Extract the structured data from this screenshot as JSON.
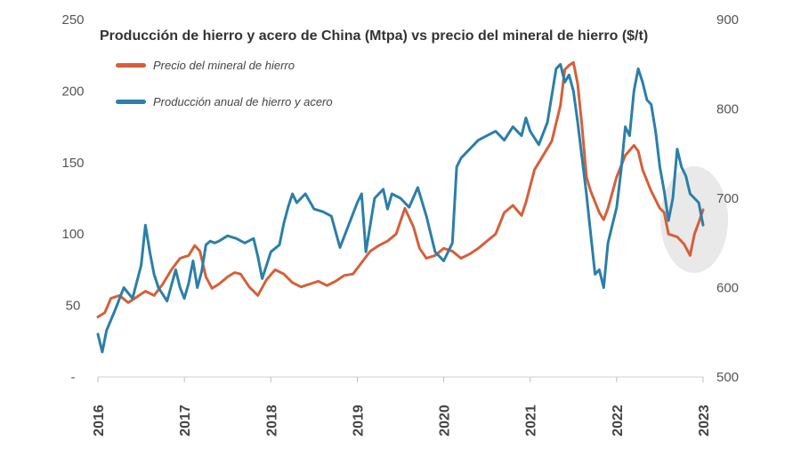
{
  "chart_data": {
    "type": "line",
    "title": "Producción de hierro y acero de China (Mtpa) vs precio del mineral de hierro ($/t)",
    "x_tick_labels": [
      "2016",
      "2017",
      "2018",
      "2019",
      "2020",
      "2021",
      "2022",
      "2023"
    ],
    "x_range": [
      2016,
      2023
    ],
    "y_left": {
      "range": [
        0,
        250
      ],
      "tick_labels": [
        "-",
        "50",
        "100",
        "150",
        "200",
        "250"
      ]
    },
    "y_right": {
      "range": [
        500,
        900
      ],
      "tick_labels": [
        "500",
        "600",
        "700",
        "800",
        "900"
      ]
    },
    "grid": false,
    "legend_position": "top-left",
    "highlight_region": "2022.5-2023 end of series (grey circle)",
    "colors": {
      "price": "#d4603a",
      "production": "#2b7fa8",
      "highlight": "#e8e8e8",
      "text": "#555555"
    },
    "series": [
      {
        "name": "Precio del mineral de hierro",
        "axis": "left",
        "color": "#d4603a",
        "x": [
          2016.0,
          2016.08,
          2016.15,
          2016.25,
          2016.35,
          2016.45,
          2016.55,
          2016.65,
          2016.75,
          2016.85,
          2016.95,
          2017.05,
          2017.12,
          2017.18,
          2017.25,
          2017.32,
          2017.4,
          2017.5,
          2017.58,
          2017.65,
          2017.75,
          2017.85,
          2017.95,
          2018.05,
          2018.15,
          2018.25,
          2018.35,
          2018.45,
          2018.55,
          2018.65,
          2018.75,
          2018.85,
          2018.95,
          2019.05,
          2019.15,
          2019.25,
          2019.35,
          2019.45,
          2019.55,
          2019.65,
          2019.72,
          2019.8,
          2019.9,
          2020.0,
          2020.1,
          2020.2,
          2020.3,
          2020.4,
          2020.5,
          2020.6,
          2020.7,
          2020.8,
          2020.9,
          2020.95,
          2021.05,
          2021.15,
          2021.25,
          2021.35,
          2021.4,
          2021.45,
          2021.5,
          2021.55,
          2021.6,
          2021.65,
          2021.7,
          2021.8,
          2021.85,
          2021.9,
          2022.0,
          2022.1,
          2022.2,
          2022.25,
          2022.3,
          2022.4,
          2022.5,
          2022.55,
          2022.6,
          2022.7,
          2022.78,
          2022.85,
          2022.9,
          2022.95,
          2023.0
        ],
        "values": [
          42,
          45,
          55,
          57,
          52,
          56,
          60,
          57,
          65,
          75,
          83,
          85,
          92,
          88,
          70,
          62,
          65,
          70,
          73,
          72,
          63,
          57,
          68,
          75,
          72,
          66,
          63,
          65,
          67,
          64,
          67,
          71,
          72,
          80,
          88,
          92,
          95,
          100,
          118,
          105,
          90,
          83,
          85,
          90,
          88,
          83,
          86,
          90,
          95,
          100,
          115,
          120,
          113,
          122,
          145,
          155,
          165,
          190,
          215,
          218,
          220,
          205,
          175,
          140,
          130,
          115,
          110,
          118,
          140,
          155,
          162,
          158,
          145,
          130,
          118,
          115,
          100,
          98,
          93,
          85,
          100,
          108,
          117
        ]
      },
      {
        "name": "Producción anual de hierro y acero",
        "axis": "right",
        "color": "#2b7fa8",
        "x": [
          2016.0,
          2016.05,
          2016.1,
          2016.2,
          2016.3,
          2016.4,
          2016.5,
          2016.55,
          2016.6,
          2016.65,
          2016.7,
          2016.8,
          2016.9,
          2016.95,
          2017.0,
          2017.05,
          2017.1,
          2017.15,
          2017.2,
          2017.25,
          2017.3,
          2017.35,
          2017.4,
          2017.5,
          2017.6,
          2017.7,
          2017.8,
          2017.85,
          2017.9,
          2018.0,
          2018.1,
          2018.15,
          2018.2,
          2018.25,
          2018.3,
          2018.4,
          2018.5,
          2018.6,
          2018.7,
          2018.8,
          2018.9,
          2019.0,
          2019.05,
          2019.1,
          2019.2,
          2019.3,
          2019.35,
          2019.4,
          2019.5,
          2019.6,
          2019.7,
          2019.8,
          2019.9,
          2020.0,
          2020.1,
          2020.15,
          2020.2,
          2020.3,
          2020.4,
          2020.5,
          2020.6,
          2020.7,
          2020.8,
          2020.9,
          2020.95,
          2021.0,
          2021.1,
          2021.2,
          2021.3,
          2021.35,
          2021.4,
          2021.45,
          2021.5,
          2021.55,
          2021.6,
          2021.65,
          2021.7,
          2021.75,
          2021.8,
          2021.85,
          2021.9,
          2022.0,
          2022.05,
          2022.1,
          2022.15,
          2022.2,
          2022.25,
          2022.3,
          2022.35,
          2022.4,
          2022.45,
          2022.5,
          2022.55,
          2022.6,
          2022.65,
          2022.7,
          2022.75,
          2022.8,
          2022.85,
          2022.9,
          2022.95,
          2023.0
        ],
        "values": [
          548,
          528,
          552,
          575,
          600,
          588,
          625,
          670,
          640,
          615,
          600,
          585,
          620,
          600,
          588,
          605,
          630,
          600,
          618,
          648,
          652,
          650,
          652,
          658,
          655,
          650,
          655,
          635,
          610,
          640,
          648,
          672,
          690,
          705,
          695,
          705,
          688,
          685,
          680,
          645,
          670,
          695,
          705,
          640,
          700,
          710,
          688,
          705,
          700,
          690,
          712,
          680,
          640,
          630,
          650,
          735,
          745,
          755,
          765,
          770,
          775,
          765,
          780,
          770,
          790,
          775,
          760,
          785,
          845,
          850,
          830,
          838,
          820,
          785,
          745,
          705,
          660,
          615,
          620,
          600,
          650,
          690,
          730,
          780,
          770,
          820,
          845,
          830,
          810,
          805,
          775,
          735,
          708,
          675,
          700,
          755,
          735,
          725,
          705,
          700,
          695,
          670
        ]
      }
    ]
  }
}
